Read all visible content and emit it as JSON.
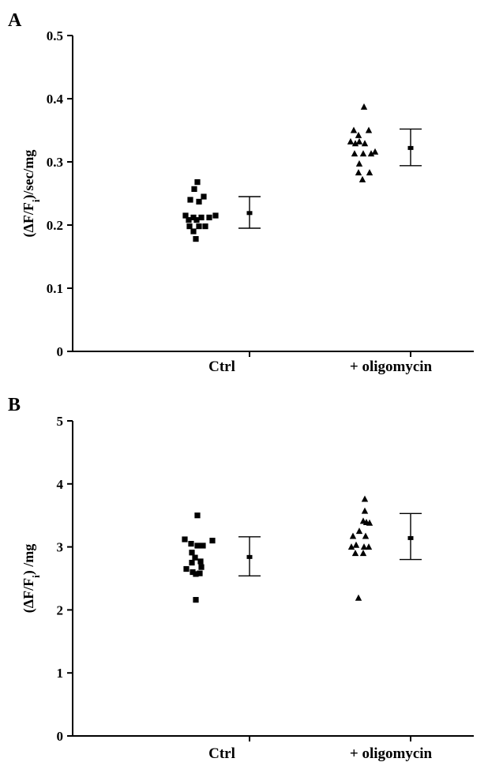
{
  "chart_data": [
    {
      "type": "scatter",
      "panel": "A",
      "ylabel_parts": [
        "(ΔF/F",
        "i",
        ")/sec/mg"
      ],
      "ylim": [
        0,
        0.5
      ],
      "yticks": [
        "0",
        "0.1",
        "0.2",
        "0.3",
        "0.4",
        "0.5"
      ],
      "yticks_values": [
        0,
        0.1,
        0.2,
        0.3,
        0.4,
        0.5
      ],
      "categories": [
        "Ctrl",
        "+ oligomycin"
      ],
      "series": [
        {
          "category": "Ctrl",
          "marker": "square",
          "points": [
            {
              "x": -1.1,
              "y": 0.268
            },
            {
              "x": -1.5,
              "y": 0.257
            },
            {
              "x": -0.3,
              "y": 0.245
            },
            {
              "x": -2.0,
              "y": 0.24
            },
            {
              "x": -0.9,
              "y": 0.237
            },
            {
              "x": -2.6,
              "y": 0.215
            },
            {
              "x": 1.2,
              "y": 0.215
            },
            {
              "x": -1.6,
              "y": 0.212
            },
            {
              "x": -0.6,
              "y": 0.212
            },
            {
              "x": 0.4,
              "y": 0.212
            },
            {
              "x": -2.2,
              "y": 0.208
            },
            {
              "x": -1.2,
              "y": 0.208
            },
            {
              "x": -2.1,
              "y": 0.198
            },
            {
              "x": -0.9,
              "y": 0.198
            },
            {
              "x": -0.1,
              "y": 0.198
            },
            {
              "x": -1.6,
              "y": 0.19
            },
            {
              "x": -1.3,
              "y": 0.178
            }
          ],
          "mean": 0.219,
          "error_low": 0.195,
          "error_high": 0.245
        },
        {
          "category": "+ oligomycin",
          "marker": "triangle",
          "points": [
            {
              "x": -0.4,
              "y": 0.387
            },
            {
              "x": -1.7,
              "y": 0.35
            },
            {
              "x": 0.2,
              "y": 0.35
            },
            {
              "x": -1.1,
              "y": 0.342
            },
            {
              "x": -2.1,
              "y": 0.332
            },
            {
              "x": -1.0,
              "y": 0.332
            },
            {
              "x": -1.5,
              "y": 0.329
            },
            {
              "x": -0.3,
              "y": 0.329
            },
            {
              "x": 1.0,
              "y": 0.316
            },
            {
              "x": -1.6,
              "y": 0.313
            },
            {
              "x": -0.5,
              "y": 0.313
            },
            {
              "x": 0.5,
              "y": 0.313
            },
            {
              "x": -1.0,
              "y": 0.297
            },
            {
              "x": 0.3,
              "y": 0.283
            },
            {
              "x": -1.1,
              "y": 0.283
            },
            {
              "x": -0.6,
              "y": 0.272
            }
          ],
          "mean": 0.322,
          "error_low": 0.294,
          "error_high": 0.352
        }
      ]
    },
    {
      "type": "scatter",
      "panel": "B",
      "ylabel_parts": [
        "(ΔF/F",
        "i",
        ") /mg"
      ],
      "ylim": [
        0,
        5
      ],
      "yticks": [
        "0",
        "1",
        "2",
        "3",
        "4",
        "5"
      ],
      "yticks_values": [
        0,
        1,
        2,
        3,
        4,
        5
      ],
      "categories": [
        "Ctrl",
        "+ oligomycin"
      ],
      "series": [
        {
          "category": "Ctrl",
          "marker": "square",
          "points": [
            {
              "x": -1.1,
              "y": 3.5
            },
            {
              "x": -2.7,
              "y": 3.12
            },
            {
              "x": 0.8,
              "y": 3.1
            },
            {
              "x": -1.9,
              "y": 3.05
            },
            {
              "x": -1.1,
              "y": 3.02
            },
            {
              "x": -0.4,
              "y": 3.02
            },
            {
              "x": -1.8,
              "y": 2.91
            },
            {
              "x": -1.4,
              "y": 2.83
            },
            {
              "x": -0.7,
              "y": 2.77
            },
            {
              "x": -1.8,
              "y": 2.75
            },
            {
              "x": -0.6,
              "y": 2.68
            },
            {
              "x": -2.5,
              "y": 2.65
            },
            {
              "x": -1.7,
              "y": 2.6
            },
            {
              "x": -0.8,
              "y": 2.58
            },
            {
              "x": -1.3,
              "y": 2.57
            },
            {
              "x": -1.3,
              "y": 2.16
            }
          ],
          "mean": 2.84,
          "error_low": 2.54,
          "error_high": 3.16
        },
        {
          "category": "+ oligomycin",
          "marker": "triangle",
          "points": [
            {
              "x": -0.3,
              "y": 3.76
            },
            {
              "x": -0.3,
              "y": 3.57
            },
            {
              "x": -0.5,
              "y": 3.41
            },
            {
              "x": -0.1,
              "y": 3.39
            },
            {
              "x": 0.3,
              "y": 3.38
            },
            {
              "x": -1.0,
              "y": 3.25
            },
            {
              "x": -1.8,
              "y": 3.17
            },
            {
              "x": -0.2,
              "y": 3.17
            },
            {
              "x": -1.4,
              "y": 3.03
            },
            {
              "x": -2.0,
              "y": 3.0
            },
            {
              "x": -0.4,
              "y": 3.0
            },
            {
              "x": 0.2,
              "y": 3.0
            },
            {
              "x": -1.5,
              "y": 2.9
            },
            {
              "x": -0.5,
              "y": 2.9
            },
            {
              "x": -1.1,
              "y": 2.19
            }
          ],
          "mean": 3.14,
          "error_low": 2.8,
          "error_high": 3.53
        }
      ]
    }
  ]
}
